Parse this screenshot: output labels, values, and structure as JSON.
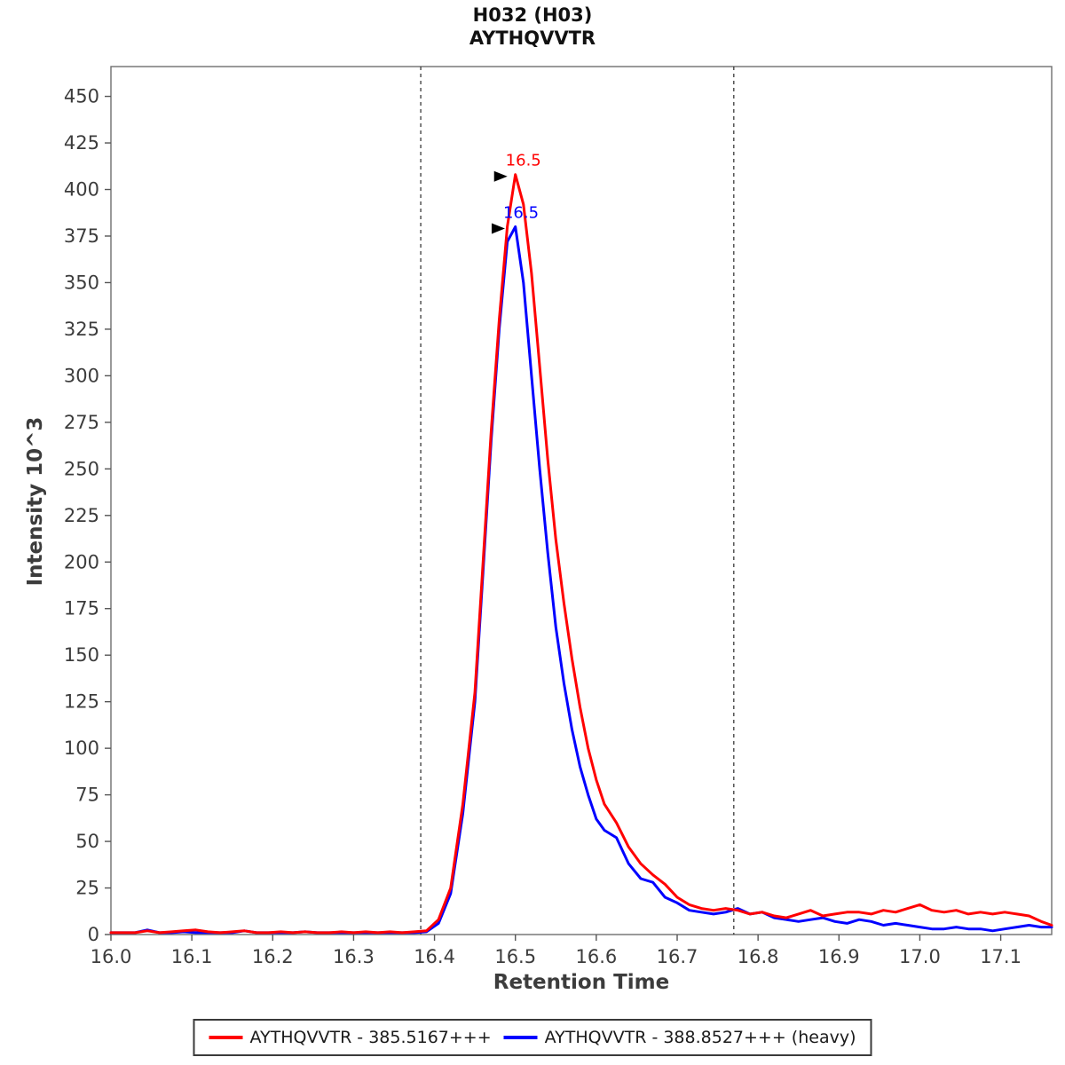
{
  "header": {
    "line1": "H032 (H03)",
    "line2": "AYTHQVVTR"
  },
  "axes": {
    "x_label": "Retention Time",
    "y_label": "Intensity 10^3",
    "x_ticks": [
      {
        "v": 16.0,
        "t": "16.0"
      },
      {
        "v": 16.1,
        "t": "16.1"
      },
      {
        "v": 16.2,
        "t": "16.2"
      },
      {
        "v": 16.3,
        "t": "16.3"
      },
      {
        "v": 16.4,
        "t": "16.4"
      },
      {
        "v": 16.5,
        "t": "16.5"
      },
      {
        "v": 16.6,
        "t": "16.6"
      },
      {
        "v": 16.7,
        "t": "16.7"
      },
      {
        "v": 16.8,
        "t": "16.8"
      },
      {
        "v": 16.9,
        "t": "16.9"
      },
      {
        "v": 17.0,
        "t": "17.0"
      },
      {
        "v": 17.1,
        "t": "17.1"
      }
    ],
    "y_ticks": [
      0,
      25,
      50,
      75,
      100,
      125,
      150,
      175,
      200,
      225,
      250,
      275,
      300,
      325,
      350,
      375,
      400,
      425,
      450
    ]
  },
  "legend": {
    "items": [
      {
        "label": "AYTHQVVTR - 385.5167+++",
        "color": "#ff0000"
      },
      {
        "label": "AYTHQVVTR - 388.8527+++ (heavy)",
        "color": "#0000ff"
      }
    ]
  },
  "chart_data": {
    "type": "line",
    "title": "H032 (H03) / AYTHQVVTR",
    "xlabel": "Retention Time",
    "ylabel": "Intensity 10^3",
    "xlim": [
      16.0,
      17.163
    ],
    "ylim": [
      0,
      466
    ],
    "grid": false,
    "legend_position": "bottom",
    "boundaries": [
      16.383,
      16.77
    ],
    "annotations": [
      {
        "text": "16.5",
        "x": 16.5,
        "y": 408,
        "color": "#ff0000"
      },
      {
        "text": "16.5",
        "x": 16.497,
        "y": 380,
        "color": "#0000ff"
      }
    ],
    "x": [
      16.0,
      16.015,
      16.03,
      16.045,
      16.06,
      16.075,
      16.09,
      16.105,
      16.12,
      16.135,
      16.15,
      16.165,
      16.18,
      16.195,
      16.21,
      16.225,
      16.24,
      16.255,
      16.27,
      16.285,
      16.3,
      16.315,
      16.33,
      16.345,
      16.36,
      16.375,
      16.39,
      16.405,
      16.42,
      16.435,
      16.45,
      16.46,
      16.47,
      16.48,
      16.49,
      16.5,
      16.51,
      16.52,
      16.53,
      16.54,
      16.55,
      16.56,
      16.57,
      16.58,
      16.59,
      16.6,
      16.61,
      16.625,
      16.64,
      16.655,
      16.67,
      16.685,
      16.7,
      16.715,
      16.73,
      16.745,
      16.76,
      16.775,
      16.79,
      16.805,
      16.82,
      16.835,
      16.85,
      16.865,
      16.88,
      16.895,
      16.91,
      16.925,
      16.94,
      16.955,
      16.97,
      16.985,
      17.0,
      17.015,
      17.03,
      17.045,
      17.06,
      17.075,
      17.09,
      17.105,
      17.12,
      17.135,
      17.15,
      17.163
    ],
    "series": [
      {
        "name": "AYTHQVVTR - 385.5167+++",
        "color": "#ff0000",
        "values": [
          1,
          1,
          1,
          2,
          1,
          1.5,
          2,
          2.5,
          1.5,
          1,
          1.5,
          2,
          1,
          1,
          1.5,
          1,
          1.5,
          1,
          1,
          1.5,
          1,
          1.5,
          1,
          1.5,
          1,
          1.5,
          2,
          8,
          25,
          70,
          130,
          200,
          270,
          330,
          380,
          408,
          392,
          355,
          305,
          255,
          212,
          178,
          148,
          122,
          100,
          83,
          70,
          60,
          47,
          38,
          32,
          27,
          20,
          16,
          14,
          13,
          14,
          13,
          11,
          12,
          10,
          9,
          11,
          13,
          10,
          11,
          12,
          12,
          11,
          13,
          12,
          14,
          16,
          13,
          12,
          13,
          11,
          12,
          11,
          12,
          11,
          10,
          7,
          5
        ]
      },
      {
        "name": "AYTHQVVTR - 388.8527+++ (heavy)",
        "color": "#0000ff",
        "values": [
          1,
          1,
          1,
          2.5,
          1,
          1,
          1.5,
          1,
          1,
          1,
          1,
          2,
          1,
          1,
          1,
          1,
          1.5,
          1,
          1,
          1,
          1,
          1,
          1,
          1,
          1,
          1,
          1.5,
          6,
          22,
          65,
          125,
          195,
          265,
          325,
          372,
          380,
          350,
          300,
          250,
          205,
          165,
          135,
          110,
          90,
          75,
          62,
          56,
          52,
          38,
          30,
          28,
          20,
          17,
          13,
          12,
          11,
          12,
          14,
          11,
          12,
          9,
          8,
          7,
          8,
          9,
          7,
          6,
          8,
          7,
          5,
          6,
          5,
          4,
          3,
          3,
          4,
          3,
          3,
          2,
          3,
          4,
          5,
          4,
          4
        ]
      }
    ]
  }
}
